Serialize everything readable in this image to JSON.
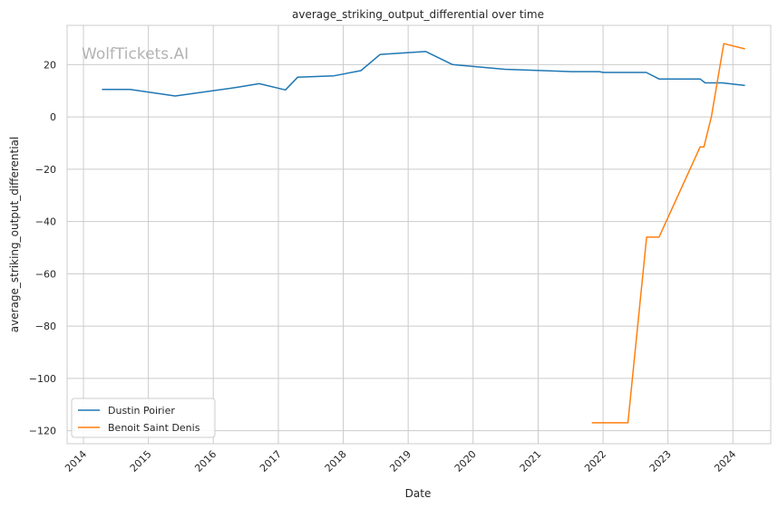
{
  "chart_data": {
    "type": "line",
    "title": "average_striking_output_differential over time",
    "xlabel": "Date",
    "ylabel": "average_striking_output_differential",
    "watermark": "WolfTickets.AI",
    "grid": true,
    "legend_position": "lower-left",
    "xlim": [
      "2013-10-01",
      "2024-08-01"
    ],
    "ylim": [
      -125,
      35
    ],
    "x_ticks": [
      "2014",
      "2015",
      "2016",
      "2017",
      "2018",
      "2019",
      "2020",
      "2021",
      "2022",
      "2023",
      "2024"
    ],
    "y_ticks": [
      20,
      0,
      -20,
      -40,
      -60,
      -80,
      -100,
      -120
    ],
    "y_tick_labels": [
      "20",
      "0",
      "−20",
      "−40",
      "−60",
      "−80",
      "−100",
      "−120"
    ],
    "series": [
      {
        "name": "Dustin Poirier",
        "color": "#1f77b4",
        "points": [
          [
            "2014-04-15",
            10.5
          ],
          [
            "2014-09-20",
            10.5
          ],
          [
            "2015-06-01",
            8.0
          ],
          [
            "2016-05-15",
            11.3
          ],
          [
            "2016-09-15",
            12.7
          ],
          [
            "2017-02-10",
            10.3
          ],
          [
            "2017-04-20",
            15.2
          ],
          [
            "2017-11-10",
            15.7
          ],
          [
            "2018-04-10",
            17.7
          ],
          [
            "2018-07-28",
            23.9
          ],
          [
            "2019-04-10",
            25.0
          ],
          [
            "2019-09-07",
            20.0
          ],
          [
            "2020-06-27",
            18.2
          ],
          [
            "2021-07-10",
            17.3
          ],
          [
            "2021-12-11",
            17.3
          ],
          [
            "2022-01-01",
            17.0
          ],
          [
            "2022-09-01",
            17.0
          ],
          [
            "2022-11-12",
            14.5
          ],
          [
            "2023-07-01",
            14.5
          ],
          [
            "2023-07-29",
            13.0
          ],
          [
            "2023-11-01",
            13.0
          ],
          [
            "2024-03-09",
            12.0
          ]
        ]
      },
      {
        "name": "Benoit Saint Denis",
        "color": "#ff7f0e",
        "points": [
          [
            "2021-10-30",
            -117.0
          ],
          [
            "2022-05-21",
            -117.0
          ],
          [
            "2022-09-03",
            -46.0
          ],
          [
            "2022-11-12",
            -46.0
          ],
          [
            "2023-07-01",
            -11.5
          ],
          [
            "2023-07-22",
            -11.5
          ],
          [
            "2023-09-02",
            0.0
          ],
          [
            "2023-11-11",
            28.0
          ],
          [
            "2024-03-09",
            26.0
          ]
        ]
      }
    ]
  }
}
